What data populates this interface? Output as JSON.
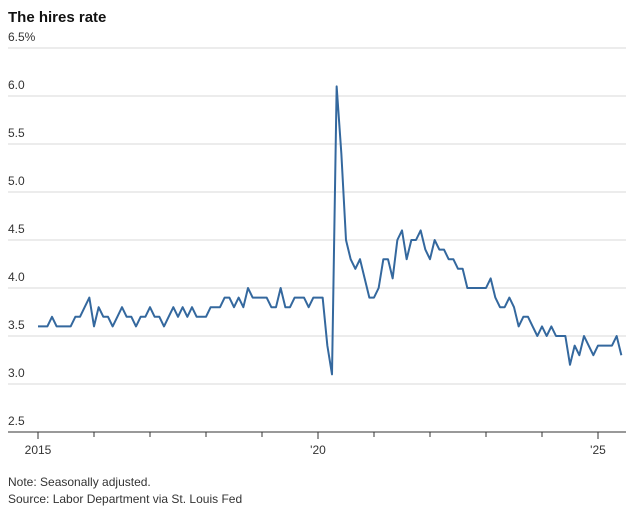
{
  "chart_data": {
    "type": "line",
    "title": "The hires rate",
    "note": "Note: Seasonally adjusted.",
    "source": "Source: Labor Department via St. Louis Fed",
    "x": [
      2015,
      2015.083,
      2015.167,
      2015.25,
      2015.333,
      2015.417,
      2015.5,
      2015.583,
      2015.667,
      2015.75,
      2015.833,
      2015.917,
      2016,
      2016.083,
      2016.167,
      2016.25,
      2016.333,
      2016.417,
      2016.5,
      2016.583,
      2016.667,
      2016.75,
      2016.833,
      2016.917,
      2017,
      2017.083,
      2017.167,
      2017.25,
      2017.333,
      2017.417,
      2017.5,
      2017.583,
      2017.667,
      2017.75,
      2017.833,
      2017.917,
      2018,
      2018.083,
      2018.167,
      2018.25,
      2018.333,
      2018.417,
      2018.5,
      2018.583,
      2018.667,
      2018.75,
      2018.833,
      2018.917,
      2019,
      2019.083,
      2019.167,
      2019.25,
      2019.333,
      2019.417,
      2019.5,
      2019.583,
      2019.667,
      2019.75,
      2019.833,
      2019.917,
      2020,
      2020.083,
      2020.167,
      2020.25,
      2020.333,
      2020.417,
      2020.5,
      2020.583,
      2020.667,
      2020.75,
      2020.833,
      2020.917,
      2021,
      2021.083,
      2021.167,
      2021.25,
      2021.333,
      2021.417,
      2021.5,
      2021.583,
      2021.667,
      2021.75,
      2021.833,
      2021.917,
      2022,
      2022.083,
      2022.167,
      2022.25,
      2022.333,
      2022.417,
      2022.5,
      2022.583,
      2022.667,
      2022.75,
      2022.833,
      2022.917,
      2023,
      2023.083,
      2023.167,
      2023.25,
      2023.333,
      2023.417,
      2023.5,
      2023.583,
      2023.667,
      2023.75,
      2023.833,
      2023.917,
      2024,
      2024.083,
      2024.167,
      2024.25,
      2024.333,
      2024.417,
      2024.5,
      2024.583,
      2024.667,
      2024.75,
      2024.833,
      2024.917,
      2025,
      2025.083,
      2025.167,
      2025.25,
      2025.333,
      2025.417
    ],
    "series": [
      {
        "name": "Hires rate",
        "color": "#34689e",
        "values": [
          3.6,
          3.6,
          3.6,
          3.7,
          3.6,
          3.6,
          3.6,
          3.6,
          3.7,
          3.7,
          3.8,
          3.9,
          3.6,
          3.8,
          3.7,
          3.7,
          3.6,
          3.7,
          3.8,
          3.7,
          3.7,
          3.6,
          3.7,
          3.7,
          3.8,
          3.7,
          3.7,
          3.6,
          3.7,
          3.8,
          3.7,
          3.8,
          3.7,
          3.8,
          3.7,
          3.7,
          3.7,
          3.8,
          3.8,
          3.8,
          3.9,
          3.9,
          3.8,
          3.9,
          3.8,
          4.0,
          3.9,
          3.9,
          3.9,
          3.9,
          3.8,
          3.8,
          4.0,
          3.8,
          3.8,
          3.9,
          3.9,
          3.9,
          3.8,
          3.9,
          3.9,
          3.9,
          3.4,
          3.1,
          6.1,
          5.4,
          4.5,
          4.3,
          4.2,
          4.3,
          4.1,
          3.9,
          3.9,
          4.0,
          4.3,
          4.3,
          4.1,
          4.5,
          4.6,
          4.3,
          4.5,
          4.5,
          4.6,
          4.4,
          4.3,
          4.5,
          4.4,
          4.4,
          4.3,
          4.3,
          4.2,
          4.2,
          4.0,
          4.0,
          4.0,
          4.0,
          4.0,
          4.1,
          3.9,
          3.8,
          3.8,
          3.9,
          3.8,
          3.6,
          3.7,
          3.7,
          3.6,
          3.5,
          3.6,
          3.5,
          3.6,
          3.5,
          3.5,
          3.5,
          3.2,
          3.4,
          3.3,
          3.5,
          3.4,
          3.3,
          3.4,
          3.4,
          3.4,
          3.4,
          3.5,
          3.3
        ]
      }
    ],
    "xlim": [
      2015,
      2025.5
    ],
    "xticks": [
      2015,
      {
        "value": 2020,
        "label": "'20"
      },
      {
        "value": 2025,
        "label": "'25"
      }
    ],
    "xminorticks": [
      2016,
      2017,
      2018,
      2019,
      2021,
      2022,
      2023,
      2024
    ],
    "ylim": [
      2.5,
      6.5
    ],
    "yticks": [
      2.5,
      {
        "value": 3,
        "label": "3.0"
      },
      3.5,
      {
        "value": 4,
        "label": "4.0"
      },
      4.5,
      {
        "value": 5,
        "label": "5.0"
      },
      5.5,
      {
        "value": 6,
        "label": "6.0"
      },
      {
        "value": 6.5,
        "label": "6.5%"
      }
    ],
    "grid": true
  }
}
